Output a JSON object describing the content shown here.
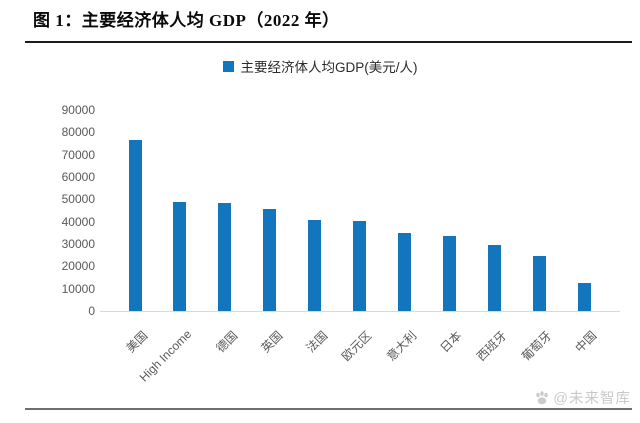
{
  "page": {
    "title": "图 1：主要经济体人均 GDP（2022 年）",
    "watermark": "@未来智库"
  },
  "chart_data": {
    "type": "bar",
    "legend": "主要经济体人均GDP(美元/人)",
    "legend_position": "top-center",
    "categories": [
      "美国",
      "High Income",
      "德国",
      "英国",
      "法国",
      "欧元区",
      "意大利",
      "日本",
      "西班牙",
      "葡萄牙",
      "中国"
    ],
    "values": [
      76400,
      49000,
      48400,
      45900,
      40900,
      40300,
      34800,
      33800,
      29400,
      24500,
      12700
    ],
    "xlabel": "",
    "ylabel": "",
    "ylim": [
      0,
      90000
    ],
    "ytick_step": 10000,
    "yticks": [
      0,
      10000,
      20000,
      30000,
      40000,
      50000,
      60000,
      70000,
      80000,
      90000
    ],
    "grid": false,
    "bar_color": "#1376bd",
    "axis_line_color": "#d9d9d9",
    "axis_text_color": "#595959"
  }
}
